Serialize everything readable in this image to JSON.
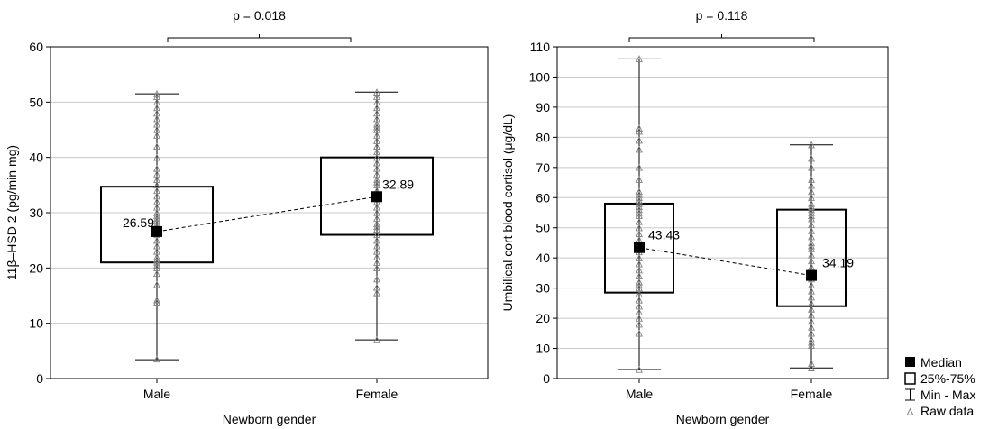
{
  "chart_data": [
    {
      "type": "box",
      "pvalue_label": "p = 0.018",
      "xlabel": "Newborn gender",
      "ylabel": "11β–HSD 2 (pg/min mg)",
      "ylim": [
        0,
        60
      ],
      "yticks": [
        0,
        10,
        20,
        30,
        40,
        50,
        60
      ],
      "grid": true,
      "categories": [
        "Male",
        "Female"
      ],
      "series": [
        {
          "category": "Male",
          "median": 26.59,
          "median_label": "26.59",
          "q1": 21,
          "q3": 34.7,
          "min": 3.4,
          "max": 51.5,
          "raw": [
            3.5,
            13.8,
            14.2,
            17,
            19,
            20,
            20.5,
            21,
            21.5,
            22,
            23,
            24,
            25,
            26,
            26.5,
            27,
            27.5,
            28,
            28.5,
            29,
            29.5,
            30,
            31,
            32,
            33,
            34,
            35,
            36,
            37,
            38,
            40,
            42,
            44,
            45,
            46,
            47,
            48,
            49,
            50,
            51,
            51.5
          ]
        },
        {
          "category": "Female",
          "median": 32.89,
          "median_label": "32.89",
          "q1": 26,
          "q3": 40,
          "min": 7,
          "max": 51.8,
          "raw": [
            7,
            15.5,
            16.5,
            18,
            20,
            21,
            22,
            23,
            24,
            25,
            26,
            27,
            27.5,
            28,
            29,
            30,
            31,
            32,
            33,
            34,
            35,
            35.5,
            36,
            37,
            38,
            39,
            40,
            41,
            42,
            43,
            44,
            45,
            45.5,
            46,
            47,
            48,
            49,
            50,
            51,
            51.8
          ]
        }
      ]
    },
    {
      "type": "box",
      "pvalue_label": "p = 0.118",
      "xlabel": "Newborn gender",
      "ylabel": "Umbilical cort blood cortisol (μg/dL)",
      "ylim": [
        0,
        110
      ],
      "yticks": [
        0,
        10,
        20,
        30,
        40,
        50,
        60,
        70,
        80,
        90,
        100,
        110
      ],
      "grid": true,
      "categories": [
        "Male",
        "Female"
      ],
      "series": [
        {
          "category": "Male",
          "median": 43.43,
          "median_label": "43.43",
          "q1": 28.5,
          "q3": 58,
          "min": 3,
          "max": 106,
          "raw": [
            3,
            15,
            18,
            20,
            22,
            24,
            26,
            28,
            30,
            31,
            32,
            34,
            36,
            38,
            40,
            42,
            44,
            46,
            48,
            50,
            52,
            54,
            55,
            56,
            57,
            58,
            59,
            60,
            61,
            62,
            66,
            70,
            76,
            79,
            82,
            83,
            106
          ]
        },
        {
          "category": "Female",
          "median": 34.19,
          "median_label": "34.19",
          "q1": 24,
          "q3": 56,
          "min": 3.5,
          "max": 77.5,
          "raw": [
            3.5,
            5,
            11,
            12,
            13,
            15,
            17,
            19,
            21,
            23,
            25,
            27,
            29,
            31,
            33,
            35,
            37,
            39,
            41,
            43,
            44,
            45,
            47,
            49,
            51,
            53,
            54,
            55,
            56,
            57,
            58,
            60,
            62,
            64,
            66,
            70,
            73,
            77.5
          ]
        }
      ]
    }
  ],
  "legend": {
    "placement": "bottom-right",
    "items": [
      {
        "label": "Median",
        "icon": "filled-square"
      },
      {
        "label": "25%-75%",
        "icon": "open-square"
      },
      {
        "label": "Min - Max",
        "icon": "whisker-bar"
      },
      {
        "label": "Raw data",
        "icon": "open-triangle"
      }
    ]
  },
  "colors": {
    "axis": "#000000",
    "grid": "#c8c8c8",
    "raw_marker": "#808080",
    "median": "#000000"
  }
}
